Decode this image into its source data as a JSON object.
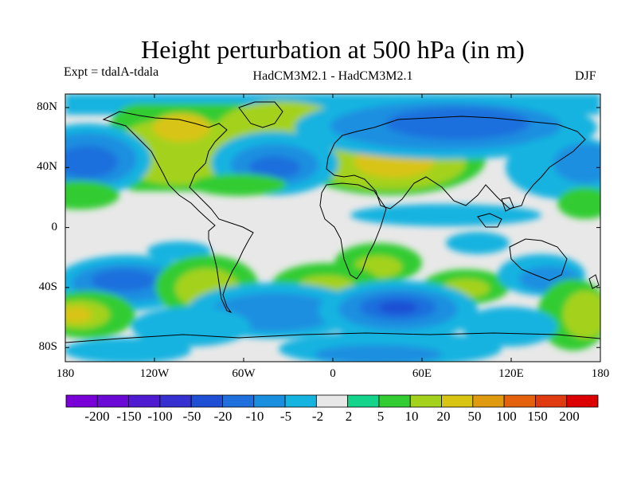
{
  "title": "Height perturbation at 500 hPa (in m)",
  "experiment": "Expt = tdalA-tdala",
  "models": "HadCM3M2.1 - HadCM3M2.1",
  "season": "DJF",
  "y_ticks": [
    "80N",
    "40N",
    "0",
    "40S",
    "80S"
  ],
  "x_ticks": [
    "180",
    "120W",
    "60W",
    "0",
    "60E",
    "120E",
    "180"
  ],
  "colorbar": {
    "levels": [
      "-200",
      "-150",
      "-100",
      "-50",
      "-20",
      "-10",
      "-5",
      "-2",
      "2",
      "5",
      "10",
      "20",
      "50",
      "100",
      "150",
      "200"
    ],
    "colors": [
      "#7a00d8",
      "#6a0ad4",
      "#4f1bd0",
      "#3530cf",
      "#1f4fd4",
      "#1f6fdd",
      "#1a8fe0",
      "#14b3e0",
      "#e8e8e8",
      "#14d48c",
      "#33cc33",
      "#a4d21c",
      "#d8c412",
      "#e09a10",
      "#e4620e",
      "#e03a10",
      "#dd0000"
    ]
  },
  "icons": {
    "map": "world-map-coastlines"
  }
}
